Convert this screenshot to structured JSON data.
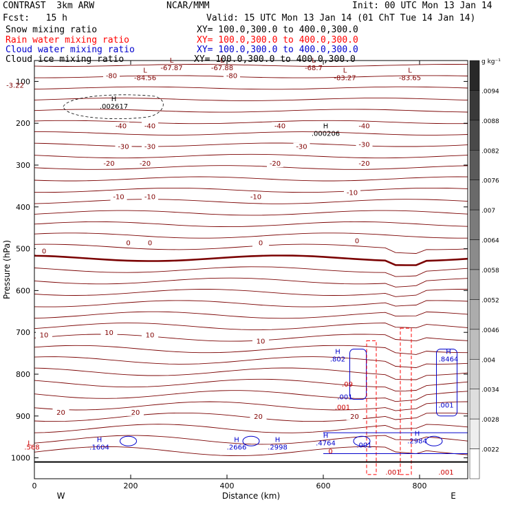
{
  "header": {
    "model": "CONTRAST  3km ARW",
    "org": "NCAR/MMM",
    "init": "Init: 00 UTC Mon 13 Jan 14",
    "fcst": "Fcst:   15 h",
    "valid": "Valid: 15 UTC Mon 13 Jan 14 (01 ChT Tue 14 Jan 14)",
    "fields": [
      {
        "name": "Snow mixing ratio",
        "xy": "XY= 100.0,300.0 to 400.0,300.0",
        "color": "#000000"
      },
      {
        "name": "Rain water mixing ratio",
        "xy": "XY= 100.0,300.0 to 400.0,300.0",
        "color": "#ff0000"
      },
      {
        "name": "Cloud water mixing ratio",
        "xy": "XY= 100.0,300.0 to 400.0,300.0",
        "color": "#0000cc"
      },
      {
        "name": "Cloud ice mixing ratio",
        "xy": "XY= 100.0,300.0 to 400.0,300.0",
        "color": "#000000"
      }
    ]
  },
  "chart_data": {
    "type": "contour",
    "xlabel": "Distance (km)",
    "ylabel": "Pressure (hPa)",
    "xlim": [
      0,
      900
    ],
    "ylim": [
      1050,
      50
    ],
    "x_ticks": [
      "0",
      "200",
      "400",
      "600",
      "800"
    ],
    "x_tick_values": [
      0,
      200,
      400,
      600,
      800
    ],
    "y_ticks": [
      "100",
      "200",
      "300",
      "400",
      "500",
      "600",
      "700",
      "800",
      "900",
      "1000"
    ],
    "y_tick_values": [
      100,
      200,
      300,
      400,
      500,
      600,
      700,
      800,
      900,
      1000
    ],
    "left_end_label": "W",
    "right_end_label": "E",
    "colorbar": {
      "unit": "g kg⁻¹",
      "labels": [
        ".0094",
        ".0088",
        ".0082",
        ".0076",
        ".007",
        ".0064",
        ".0058",
        ".0052",
        ".0046",
        ".004",
        ".0034",
        ".0028",
        ".0022"
      ]
    },
    "temperature_labels": [
      {
        "text": "-80",
        "x": 160,
        "p": 90
      },
      {
        "text": "-80",
        "x": 410,
        "p": 90
      },
      {
        "text": "-40",
        "x": 180,
        "p": 210
      },
      {
        "text": "-40",
        "x": 240,
        "p": 210
      },
      {
        "text": "-40",
        "x": 510,
        "p": 210
      },
      {
        "text": "-40",
        "x": 685,
        "p": 210
      },
      {
        "text": "-30",
        "x": 185,
        "p": 260
      },
      {
        "text": "-30",
        "x": 240,
        "p": 260
      },
      {
        "text": "-30",
        "x": 555,
        "p": 260
      },
      {
        "text": "-30",
        "x": 685,
        "p": 255
      },
      {
        "text": "-20",
        "x": 155,
        "p": 300
      },
      {
        "text": "-20",
        "x": 230,
        "p": 300
      },
      {
        "text": "-20",
        "x": 500,
        "p": 300
      },
      {
        "text": "-20",
        "x": 685,
        "p": 300
      },
      {
        "text": "-10",
        "x": 175,
        "p": 380
      },
      {
        "text": "-10",
        "x": 240,
        "p": 380
      },
      {
        "text": "-10",
        "x": 460,
        "p": 380
      },
      {
        "text": "-10",
        "x": 660,
        "p": 370
      },
      {
        "text": "0",
        "x": 20,
        "p": 510
      },
      {
        "text": "0",
        "x": 195,
        "p": 490
      },
      {
        "text": "0",
        "x": 240,
        "p": 490
      },
      {
        "text": "0",
        "x": 470,
        "p": 490
      },
      {
        "text": "0",
        "x": 670,
        "p": 485
      },
      {
        "text": "10",
        "x": 20,
        "p": 710
      },
      {
        "text": "10",
        "x": 155,
        "p": 705
      },
      {
        "text": "10",
        "x": 240,
        "p": 710
      },
      {
        "text": "10",
        "x": 470,
        "p": 725
      },
      {
        "text": "20",
        "x": 55,
        "p": 895
      },
      {
        "text": "20",
        "x": 210,
        "p": 895
      },
      {
        "text": "20",
        "x": 465,
        "p": 905
      },
      {
        "text": "20",
        "x": 665,
        "p": 905
      }
    ],
    "extrema": [
      {
        "kind": "L",
        "value": "-67.87",
        "x": 285,
        "p": 68
      },
      {
        "kind": "L",
        "value": "-67.88",
        "x": 390,
        "p": 68
      },
      {
        "kind": "L",
        "value": "-68.7",
        "x": 580,
        "p": 68
      },
      {
        "kind": "L",
        "value": "-84.56",
        "x": 230,
        "p": 92
      },
      {
        "kind": "L",
        "value": "-83.27",
        "x": 645,
        "p": 92
      },
      {
        "kind": "L",
        "value": "-83.65",
        "x": 780,
        "p": 92
      },
      {
        "kind": "H",
        "value": ".002617",
        "x": 165,
        "p": 160
      },
      {
        "kind": "H",
        "value": ".000206",
        "x": 605,
        "p": 225
      },
      {
        "kind": "H",
        "value": ".802",
        "x": 630,
        "p": 765
      },
      {
        "kind": "H",
        "value": ".8464",
        "x": 860,
        "p": 765
      },
      {
        "kind": "H",
        "value": ".1604",
        "x": 135,
        "p": 975
      },
      {
        "kind": "H",
        "value": ".2666",
        "x": 420,
        "p": 975
      },
      {
        "kind": "H",
        "value": ".2998",
        "x": 505,
        "p": 975
      },
      {
        "kind": "H",
        "value": ".4764",
        "x": 605,
        "p": 965
      },
      {
        "kind": "H",
        "value": ".2984",
        "x": 795,
        "p": 960
      }
    ],
    "misc_labels": [
      {
        "text": "-3.22",
        "x": -40,
        "p": 115,
        "color": "#800000"
      },
      {
        "text": ".568",
        "x": -5,
        "p": 980,
        "color": "#cc0000"
      },
      {
        "text": ".001",
        "x": 645,
        "p": 860,
        "color": "#0000cc"
      },
      {
        "text": ".001",
        "x": 640,
        "p": 885,
        "color": "#cc0000"
      },
      {
        "text": ".001",
        "x": 685,
        "p": 975,
        "color": "#0000cc"
      },
      {
        "text": ".001",
        "x": 855,
        "p": 880,
        "color": "#0000cc"
      },
      {
        "text": ".001",
        "x": 745,
        "p": 1040,
        "color": "#cc0000"
      },
      {
        "text": ".001",
        "x": 855,
        "p": 1040,
        "color": "#cc0000"
      },
      {
        "text": ".09",
        "x": 650,
        "p": 830,
        "color": "#cc0000"
      },
      {
        "text": "0",
        "x": 615,
        "p": 990,
        "color": "#cc0000"
      },
      {
        "text": "L",
        "x": -10,
        "p": 970,
        "color": "#cc0000"
      }
    ]
  }
}
